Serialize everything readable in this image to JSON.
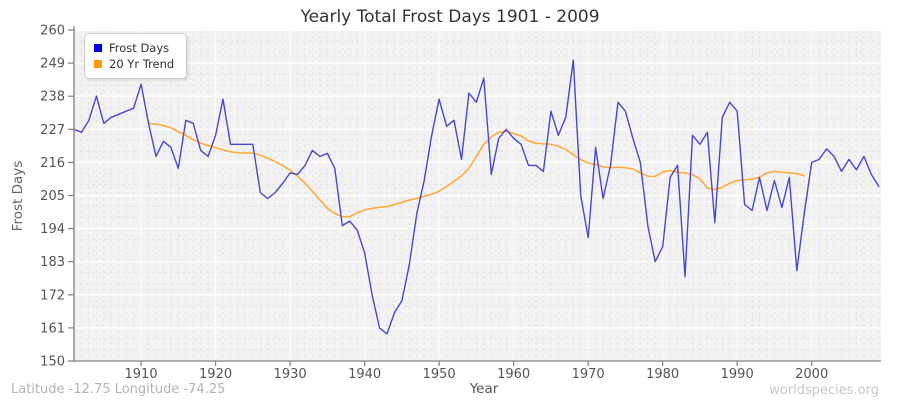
{
  "title": "Yearly Total Frost Days 1901 - 2009",
  "footer": {
    "coordinates": "Latitude -12.75 Longitude -74.25",
    "watermark": "worldspecies.org"
  },
  "legend": {
    "items": [
      {
        "label": "Frost Days",
        "swatch_color": "#0000ee"
      },
      {
        "label": "20 Yr Trend",
        "swatch_color": "#ff9900"
      }
    ]
  },
  "colors": {
    "frost_line": "#4747d1",
    "trend_line": "#ffa733",
    "plot_bg": "#f2f2f2",
    "grid_minor": "#e2e2e2",
    "grid_major": "#ffffff",
    "axis": "#808080",
    "tick_text": "#555555"
  },
  "chart_data": {
    "type": "line",
    "title": "Yearly Total Frost Days 1901 - 2009",
    "xlabel": "Year",
    "ylabel": "Frost Days",
    "xlim": [
      1901,
      2009.3
    ],
    "ylim": [
      150,
      260
    ],
    "xticks": [
      1910,
      1920,
      1930,
      1940,
      1950,
      1960,
      1970,
      1980,
      1990,
      2000
    ],
    "yticks": [
      260,
      249,
      238,
      227,
      216,
      205,
      194,
      183,
      172,
      161,
      150
    ],
    "grid": true,
    "legend_position": "upper-left",
    "series": [
      {
        "name": "Frost Days",
        "x_start_year": 1901,
        "values": [
          227,
          226,
          230,
          238,
          229,
          231,
          232,
          233,
          234,
          242,
          229,
          218,
          223,
          221,
          214,
          230,
          229,
          220,
          218,
          225,
          237,
          222,
          222,
          222,
          222,
          206,
          204,
          206,
          209,
          212.5,
          212,
          215,
          220,
          218,
          219,
          214,
          195,
          196.5,
          193.5,
          186,
          172,
          161,
          159,
          166,
          170,
          182,
          199,
          210,
          225,
          237,
          228,
          230,
          217,
          239,
          236,
          244,
          212,
          224,
          227,
          224,
          222,
          215,
          215,
          213,
          233,
          225,
          231,
          250,
          205,
          191,
          221,
          204,
          215,
          236,
          233,
          224,
          216,
          195,
          183,
          188,
          211,
          215,
          178,
          225,
          222,
          226,
          196,
          231,
          236,
          233,
          202,
          200,
          211,
          200,
          210,
          201,
          211,
          180,
          199,
          216,
          217,
          220.5,
          218,
          213,
          217,
          213.5,
          218,
          212,
          208
        ]
      },
      {
        "name": "20 Yr Trend",
        "x_start_year": 1911,
        "values": [
          229.0,
          228.7,
          228.3,
          227.5,
          226.2,
          225.0,
          223.5,
          222.4,
          221.6,
          220.9,
          220.2,
          219.5,
          219.2,
          219.1,
          219.1,
          218.4,
          217.4,
          216.3,
          214.9,
          213.4,
          211.4,
          209.1,
          206.4,
          203.5,
          200.7,
          199.0,
          198.0,
          198.0,
          199.2,
          200.2,
          200.7,
          201.1,
          201.3,
          202.0,
          202.7,
          203.5,
          204.0,
          204.7,
          205.4,
          206.4,
          208.0,
          209.7,
          211.5,
          214.0,
          218.0,
          222.0,
          224.5,
          226.0,
          226.3,
          225.6,
          224.8,
          223.1,
          222.3,
          222.2,
          222.0,
          221.4,
          220.3,
          218.6,
          216.9,
          215.8,
          215.3,
          214.5,
          214.2,
          214.4,
          214.2,
          213.8,
          212.5,
          211.4,
          211.3,
          212.8,
          213.3,
          212.7,
          212.5,
          211.9,
          210.5,
          207.5,
          207.0,
          207.7,
          209.1,
          210.0,
          210.2,
          210.4,
          211.1,
          212.5,
          213.0,
          212.7,
          212.5,
          212.3,
          211.5
        ]
      }
    ]
  }
}
